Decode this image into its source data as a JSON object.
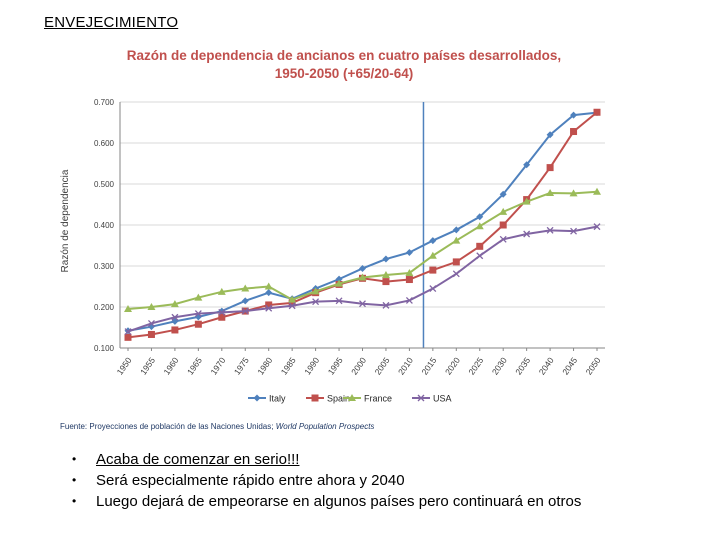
{
  "page": {
    "title": "ENVEJECIMIENTO",
    "source_prefix": "Fuente: Proyecciones de población de las Naciones Unidas;",
    "source_italic": "World Population Prospects",
    "bullets": [
      "Acaba de comenzar en serio!!!",
      "Será especialmente rápido entre ahora y 2040",
      "Luego dejará de empeorarse en algunos países pero continuará en otros"
    ]
  },
  "chart_data": {
    "type": "line",
    "title_line1": "Razón de dependencia de ancianos en cuatro países desarrollados,",
    "title_line2": "1950-2050 (+65/20-64)",
    "title_color": "#c0504d",
    "xlabel": "",
    "ylabel": "Razón de dependencia",
    "ylim": [
      0.1,
      0.7
    ],
    "yticks": [
      "0.100",
      "0.200",
      "0.300",
      "0.400",
      "0.500",
      "0.600",
      "0.700"
    ],
    "grid": true,
    "legend": "bottom",
    "x": [
      1950,
      1955,
      1960,
      1965,
      1970,
      1975,
      1980,
      1985,
      1990,
      1995,
      2000,
      2005,
      2010,
      2015,
      2020,
      2025,
      2030,
      2035,
      2040,
      2045,
      2050
    ],
    "xticks": [
      "1950",
      "1955",
      "1960",
      "1965",
      "1970",
      "1975",
      "1980",
      "1985",
      "1990",
      "1995",
      "2000",
      "2005",
      "2010",
      "2015",
      "2020",
      "2025",
      "2030",
      "2035",
      "2040",
      "2045",
      "2050"
    ],
    "marker_line_year": 2013,
    "series": [
      {
        "name": "Italy",
        "color": "#4f81bd",
        "marker": "diamond",
        "values": [
          0.142,
          0.152,
          0.165,
          0.176,
          0.19,
          0.215,
          0.235,
          0.22,
          0.245,
          0.268,
          0.294,
          0.317,
          0.333,
          0.362,
          0.388,
          0.42,
          0.475,
          0.547,
          0.62,
          0.668,
          0.674
        ]
      },
      {
        "name": "Spain",
        "color": "#c0504d",
        "marker": "square",
        "values": [
          0.126,
          0.133,
          0.144,
          0.158,
          0.175,
          0.19,
          0.205,
          0.21,
          0.235,
          0.255,
          0.27,
          0.262,
          0.267,
          0.29,
          0.31,
          0.348,
          0.4,
          0.462,
          0.54,
          0.628,
          0.675
        ]
      },
      {
        "name": "France",
        "color": "#9bbb59",
        "marker": "triangle",
        "values": [
          0.195,
          0.2,
          0.207,
          0.223,
          0.237,
          0.245,
          0.25,
          0.218,
          0.238,
          0.257,
          0.272,
          0.278,
          0.283,
          0.325,
          0.362,
          0.397,
          0.432,
          0.457,
          0.478,
          0.477,
          0.481
        ]
      },
      {
        "name": "USA",
        "color": "#8064a2",
        "marker": "x",
        "values": [
          0.14,
          0.16,
          0.175,
          0.184,
          0.187,
          0.19,
          0.197,
          0.203,
          0.213,
          0.215,
          0.208,
          0.204,
          0.216,
          0.245,
          0.281,
          0.325,
          0.365,
          0.378,
          0.387,
          0.385,
          0.396
        ]
      }
    ]
  }
}
